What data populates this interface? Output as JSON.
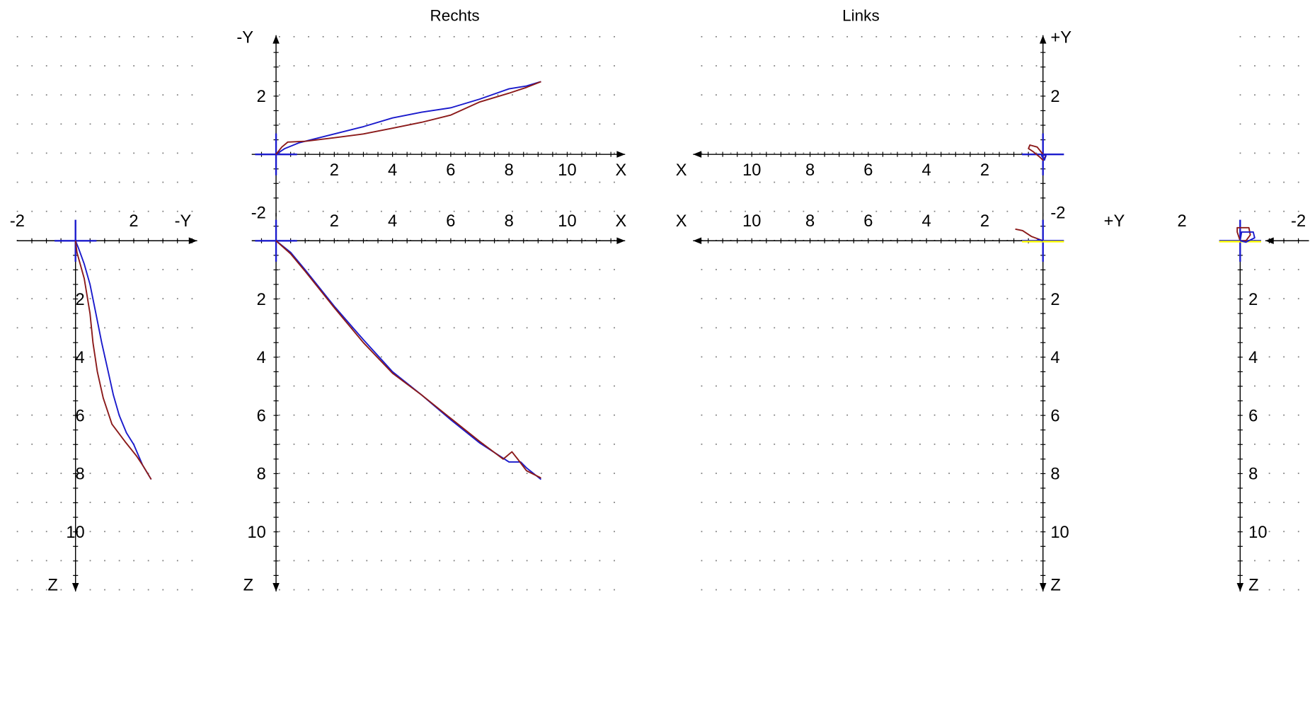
{
  "titles": {
    "right": "Rechts",
    "left": "Links"
  },
  "colors": {
    "axis": "#000000",
    "grid_dot": "#808080",
    "series_a": "#1a1acc",
    "series_b": "#8b1a1a",
    "marker": "#1a1acc",
    "highlight": "#ffff00"
  },
  "chart_data": [
    {
      "id": "rechts-xy",
      "type": "line",
      "title": "Rechts",
      "view": "top",
      "xlabel": "X",
      "ylabel": "-Y",
      "xlim": [
        -0.2,
        12
      ],
      "ylim": [
        -2,
        4
      ],
      "xticks": [
        2,
        4,
        6,
        8,
        10
      ],
      "yticks": [
        2,
        -2
      ],
      "grid": true,
      "series": [
        {
          "name": "",
          "color": "#1a1acc",
          "points": [
            [
              0,
              0
            ],
            [
              0.3,
              0.2
            ],
            [
              0.8,
              0.4
            ],
            [
              2,
              0.7
            ],
            [
              3,
              0.95
            ],
            [
              4,
              1.25
            ],
            [
              5,
              1.45
            ],
            [
              6,
              1.6
            ],
            [
              7,
              1.9
            ],
            [
              8,
              2.25
            ],
            [
              8.6,
              2.35
            ],
            [
              9.1,
              2.5
            ]
          ]
        },
        {
          "name": "",
          "color": "#8b1a1a",
          "points": [
            [
              0,
              0
            ],
            [
              0.2,
              0.25
            ],
            [
              0.4,
              0.42
            ],
            [
              1,
              0.45
            ],
            [
              2,
              0.57
            ],
            [
              3,
              0.7
            ],
            [
              4,
              0.9
            ],
            [
              5,
              1.1
            ],
            [
              6,
              1.35
            ],
            [
              7,
              1.8
            ],
            [
              8,
              2.1
            ],
            [
              8.6,
              2.3
            ],
            [
              9.1,
              2.5
            ]
          ]
        }
      ]
    },
    {
      "id": "rechts-xz",
      "type": "line",
      "title": "",
      "view": "front",
      "xlabel": "X",
      "ylabel": "Z",
      "xlim": [
        -0.2,
        12
      ],
      "ylim": [
        0,
        12
      ],
      "xticks": [
        2,
        4,
        6,
        8,
        10
      ],
      "yticks": [
        2,
        4,
        6,
        8,
        10
      ],
      "grid": true,
      "series": [
        {
          "name": "",
          "color": "#1a1acc",
          "points": [
            [
              0,
              0
            ],
            [
              0.5,
              0.4
            ],
            [
              1,
              1
            ],
            [
              2,
              2.25
            ],
            [
              3,
              3.4
            ],
            [
              4,
              4.5
            ],
            [
              5,
              5.3
            ],
            [
              6,
              6.15
            ],
            [
              7,
              6.95
            ],
            [
              8,
              7.6
            ],
            [
              8.4,
              7.6
            ],
            [
              8.6,
              7.8
            ],
            [
              9.1,
              8.2
            ]
          ]
        },
        {
          "name": "",
          "color": "#8b1a1a",
          "points": [
            [
              0,
              0
            ],
            [
              0.5,
              0.45
            ],
            [
              1,
              1.05
            ],
            [
              2,
              2.3
            ],
            [
              3,
              3.5
            ],
            [
              4,
              4.55
            ],
            [
              5,
              5.3
            ],
            [
              6,
              6.1
            ],
            [
              7,
              6.9
            ],
            [
              7.8,
              7.5
            ],
            [
              8.1,
              7.25
            ],
            [
              8.3,
              7.5
            ],
            [
              8.6,
              7.9
            ],
            [
              9.1,
              8.15
            ]
          ]
        }
      ]
    },
    {
      "id": "rechts-yz",
      "type": "line",
      "title": "",
      "view": "side",
      "xlabel": "-Y",
      "ylabel": "Z",
      "xlim": [
        -2,
        4
      ],
      "ylim": [
        0,
        12
      ],
      "xticks": [
        -2,
        2
      ],
      "yticks": [
        2,
        4,
        6,
        8,
        10
      ],
      "grid": true,
      "series": [
        {
          "name": "",
          "color": "#1a1acc",
          "points": [
            [
              0,
              0
            ],
            [
              0.1,
              0.25
            ],
            [
              0.3,
              0.8
            ],
            [
              0.5,
              1.5
            ],
            [
              0.7,
              2.5
            ],
            [
              0.9,
              3.5
            ],
            [
              1.1,
              4.4
            ],
            [
              1.3,
              5.3
            ],
            [
              1.5,
              6.0
            ],
            [
              1.75,
              6.6
            ],
            [
              2,
              7.0
            ],
            [
              2.3,
              7.7
            ],
            [
              2.6,
              8.2
            ]
          ]
        },
        {
          "name": "",
          "color": "#8b1a1a",
          "points": [
            [
              0,
              0
            ],
            [
              0.05,
              0.4
            ],
            [
              0.3,
              1.3
            ],
            [
              0.5,
              2.5
            ],
            [
              0.6,
              3.5
            ],
            [
              0.75,
              4.5
            ],
            [
              0.95,
              5.4
            ],
            [
              1.25,
              6.3
            ],
            [
              1.7,
              6.9
            ],
            [
              2.1,
              7.4
            ],
            [
              2.3,
              7.7
            ],
            [
              2.6,
              8.2
            ]
          ]
        }
      ]
    },
    {
      "id": "links-xy",
      "type": "line",
      "title": "Links",
      "view": "top",
      "xlabel": "X",
      "ylabel": "+Y",
      "xlim": [
        -0.2,
        12
      ],
      "ylim": [
        -2,
        4
      ],
      "xticks": [
        2,
        4,
        6,
        8,
        10
      ],
      "yticks": [
        2,
        -2
      ],
      "grid": true,
      "series": [
        {
          "name": "",
          "color": "#8b1a1a",
          "points": [
            [
              0,
              0
            ],
            [
              0.2,
              0.25
            ],
            [
              0.45,
              0.32
            ],
            [
              0.5,
              0.2
            ],
            [
              0.35,
              0.1
            ],
            [
              0.1,
              -0.1
            ],
            [
              0,
              -0.2
            ],
            [
              -0.1,
              -0.05
            ],
            [
              0,
              0
            ]
          ]
        },
        {
          "name": "",
          "color": "#1a1acc",
          "points": [
            [
              0,
              0
            ],
            [
              -0.1,
              -0.05
            ],
            [
              -0.05,
              -0.2
            ],
            [
              0.05,
              -0.05
            ],
            [
              0,
              0
            ]
          ]
        }
      ]
    },
    {
      "id": "links-xz",
      "type": "line",
      "title": "",
      "view": "front",
      "xlabel": "X",
      "ylabel": "Z",
      "xlim": [
        -0.2,
        12
      ],
      "ylim": [
        0,
        12
      ],
      "xticks": [
        2,
        4,
        6,
        8,
        10
      ],
      "yticks": [
        2,
        4,
        6,
        8,
        10
      ],
      "grid": true,
      "series": [
        {
          "name": "",
          "color": "#8b1a1a",
          "points": [
            [
              0,
              0
            ],
            [
              0.4,
              -0.15
            ],
            [
              0.7,
              -0.35
            ],
            [
              0.95,
              -0.4
            ]
          ]
        },
        {
          "name": "",
          "color": "#1a1acc",
          "points": [
            [
              0,
              0
            ],
            [
              0.2,
              -0.05
            ]
          ]
        }
      ]
    },
    {
      "id": "links-yz",
      "type": "line",
      "title": "",
      "view": "side",
      "xlabel": "+Y",
      "ylabel": "Z",
      "xlim": [
        -2,
        4
      ],
      "ylim": [
        0,
        12
      ],
      "xticks": [
        2,
        -2
      ],
      "yticks": [
        2,
        4,
        6,
        8,
        10
      ],
      "grid": true,
      "series": [
        {
          "name": "",
          "color": "#8b1a1a",
          "points": [
            [
              0,
              0
            ],
            [
              0.1,
              -0.3
            ],
            [
              0.1,
              -0.45
            ],
            [
              -0.3,
              -0.45
            ],
            [
              -0.35,
              -0.2
            ],
            [
              -0.2,
              0
            ],
            [
              0,
              0
            ]
          ]
        },
        {
          "name": "",
          "color": "#1a1acc",
          "points": [
            [
              0,
              0
            ],
            [
              -0.05,
              -0.3
            ],
            [
              -0.45,
              -0.3
            ],
            [
              -0.5,
              -0.1
            ],
            [
              -0.2,
              0.05
            ],
            [
              0,
              0
            ]
          ]
        }
      ]
    }
  ]
}
